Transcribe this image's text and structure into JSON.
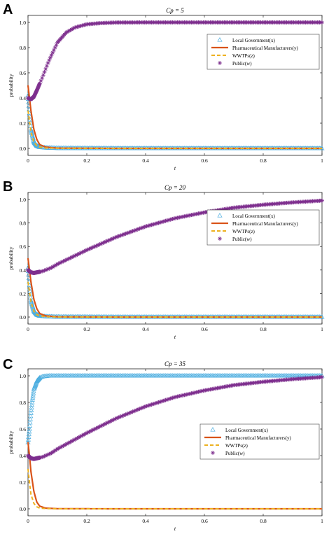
{
  "chart_data": [
    {
      "type": "line",
      "panel_label": "A",
      "title": "Cp = 5",
      "xlabel": "t",
      "ylabel": "probability",
      "xlim": [
        0,
        1
      ],
      "ylim": [
        0,
        1
      ],
      "xticks": [
        "0",
        "0.2",
        "0.4",
        "0.6",
        "0.8",
        "1"
      ],
      "yticks": [
        "0.0",
        "0.2",
        "0.4",
        "0.6",
        "0.8",
        "1.0"
      ],
      "legend_position": "top-right",
      "series": [
        {
          "name": "Local Government(x)",
          "marker": "triangle",
          "color": "#4daee0",
          "x": [
            0,
            0.005,
            0.01,
            0.02,
            0.03,
            0.04,
            0.06,
            0.1,
            0.3,
            0.6,
            1.0
          ],
          "values": [
            0.42,
            0.28,
            0.15,
            0.05,
            0.02,
            0.01,
            0.005,
            0.002,
            0.0,
            0.0,
            0.0
          ]
        },
        {
          "name": "Pharmaceutical Manufacturers(y)",
          "marker": "line",
          "color": "#d95319",
          "x": [
            0,
            0.005,
            0.01,
            0.02,
            0.03,
            0.04,
            0.06,
            0.1,
            0.3,
            0.6,
            1.0
          ],
          "values": [
            0.5,
            0.4,
            0.3,
            0.15,
            0.07,
            0.03,
            0.01,
            0.002,
            0.0,
            0.0,
            0.0
          ]
        },
        {
          "name": "WWTPs(z)",
          "marker": "dashed",
          "color": "#edb120",
          "x": [
            0,
            0.005,
            0.01,
            0.02,
            0.03,
            0.04,
            0.06,
            0.1,
            0.3,
            0.6,
            1.0
          ],
          "values": [
            0.3,
            0.22,
            0.13,
            0.05,
            0.02,
            0.01,
            0.003,
            0.001,
            0.0,
            0.0,
            0.0
          ]
        },
        {
          "name": "Public(w)",
          "marker": "star",
          "color": "#7e2f8e",
          "x": [
            0,
            0.01,
            0.02,
            0.03,
            0.05,
            0.07,
            0.1,
            0.13,
            0.16,
            0.2,
            0.25,
            0.3,
            0.4,
            0.6,
            0.8,
            1.0
          ],
          "values": [
            0.4,
            0.39,
            0.41,
            0.46,
            0.57,
            0.69,
            0.84,
            0.92,
            0.96,
            0.985,
            0.995,
            0.999,
            1.0,
            1.0,
            1.0,
            1.0
          ]
        }
      ]
    },
    {
      "type": "line",
      "panel_label": "B",
      "title": "Cp = 20",
      "xlabel": "t",
      "ylabel": "probability",
      "xlim": [
        0,
        1
      ],
      "ylim": [
        0,
        1
      ],
      "xticks": [
        "0",
        "0.2",
        "0.4",
        "0.6",
        "0.8",
        "1"
      ],
      "yticks": [
        "0.0",
        "0.2",
        "0.4",
        "0.6",
        "0.8",
        "1.0"
      ],
      "legend_position": "top-right",
      "series": [
        {
          "name": "Local Government(x)",
          "marker": "triangle",
          "color": "#4daee0",
          "x": [
            0,
            0.005,
            0.01,
            0.02,
            0.03,
            0.04,
            0.06,
            0.1,
            0.3,
            0.6,
            1.0
          ],
          "values": [
            0.42,
            0.27,
            0.14,
            0.05,
            0.02,
            0.01,
            0.005,
            0.002,
            0.0,
            0.0,
            0.0
          ]
        },
        {
          "name": "Pharmaceutical Manufacturers(y)",
          "marker": "line",
          "color": "#d95319",
          "x": [
            0,
            0.005,
            0.01,
            0.02,
            0.03,
            0.04,
            0.06,
            0.1,
            0.3,
            0.6,
            1.0
          ],
          "values": [
            0.5,
            0.4,
            0.3,
            0.15,
            0.07,
            0.03,
            0.01,
            0.002,
            0.0,
            0.0,
            0.0
          ]
        },
        {
          "name": "WWTPs(z)",
          "marker": "dashed",
          "color": "#edb120",
          "x": [
            0,
            0.005,
            0.01,
            0.02,
            0.03,
            0.04,
            0.06,
            0.1,
            0.3,
            0.6,
            1.0
          ],
          "values": [
            0.3,
            0.22,
            0.13,
            0.05,
            0.02,
            0.01,
            0.003,
            0.001,
            0.0,
            0.0,
            0.0
          ]
        },
        {
          "name": "Public(w)",
          "marker": "star",
          "color": "#7e2f8e",
          "x": [
            0,
            0.01,
            0.02,
            0.03,
            0.05,
            0.08,
            0.1,
            0.15,
            0.2,
            0.3,
            0.4,
            0.5,
            0.6,
            0.7,
            0.8,
            0.9,
            1.0
          ],
          "values": [
            0.4,
            0.38,
            0.375,
            0.38,
            0.39,
            0.42,
            0.45,
            0.51,
            0.57,
            0.68,
            0.77,
            0.84,
            0.89,
            0.93,
            0.955,
            0.975,
            0.99
          ]
        }
      ]
    },
    {
      "type": "line",
      "panel_label": "C",
      "title": "Cp = 35",
      "xlabel": "t",
      "ylabel": "probability",
      "xlim": [
        0,
        1
      ],
      "ylim": [
        0,
        1
      ],
      "xticks": [
        "0",
        "0.2",
        "0.4",
        "0.6",
        "0.8",
        "1"
      ],
      "yticks": [
        "0.0",
        "0.2",
        "0.4",
        "0.6",
        "0.8",
        "1.0"
      ],
      "legend_position": "center-right",
      "series": [
        {
          "name": "Local Government(x)",
          "marker": "triangle",
          "color": "#4daee0",
          "x": [
            0,
            0.005,
            0.01,
            0.015,
            0.02,
            0.03,
            0.04,
            0.05,
            0.07,
            0.1,
            0.2,
            0.4,
            0.6,
            0.8,
            1.0
          ],
          "values": [
            0.5,
            0.6,
            0.72,
            0.82,
            0.9,
            0.96,
            0.985,
            0.995,
            1.0,
            1.0,
            1.0,
            1.0,
            1.0,
            1.0,
            1.0
          ]
        },
        {
          "name": "Pharmaceutical Manufacturers(y)",
          "marker": "line",
          "color": "#d95319",
          "x": [
            0,
            0.005,
            0.01,
            0.02,
            0.03,
            0.04,
            0.06,
            0.1,
            0.3,
            0.6,
            1.0
          ],
          "values": [
            0.5,
            0.4,
            0.28,
            0.13,
            0.05,
            0.02,
            0.005,
            0.001,
            0.0,
            0.0,
            0.0
          ]
        },
        {
          "name": "WWTPs(z)",
          "marker": "dashed",
          "color": "#edb120",
          "x": [
            0,
            0.005,
            0.01,
            0.02,
            0.03,
            0.04,
            0.06,
            0.1,
            0.3,
            0.6,
            1.0
          ],
          "values": [
            0.3,
            0.2,
            0.11,
            0.04,
            0.015,
            0.005,
            0.002,
            0.0,
            0.0,
            0.0,
            0.0
          ]
        },
        {
          "name": "Public(w)",
          "marker": "star",
          "color": "#7e2f8e",
          "x": [
            0,
            0.01,
            0.02,
            0.03,
            0.05,
            0.08,
            0.1,
            0.15,
            0.2,
            0.3,
            0.4,
            0.5,
            0.6,
            0.7,
            0.8,
            0.9,
            1.0
          ],
          "values": [
            0.4,
            0.38,
            0.375,
            0.38,
            0.39,
            0.42,
            0.45,
            0.51,
            0.57,
            0.68,
            0.77,
            0.84,
            0.89,
            0.93,
            0.955,
            0.975,
            0.99
          ]
        }
      ]
    }
  ]
}
